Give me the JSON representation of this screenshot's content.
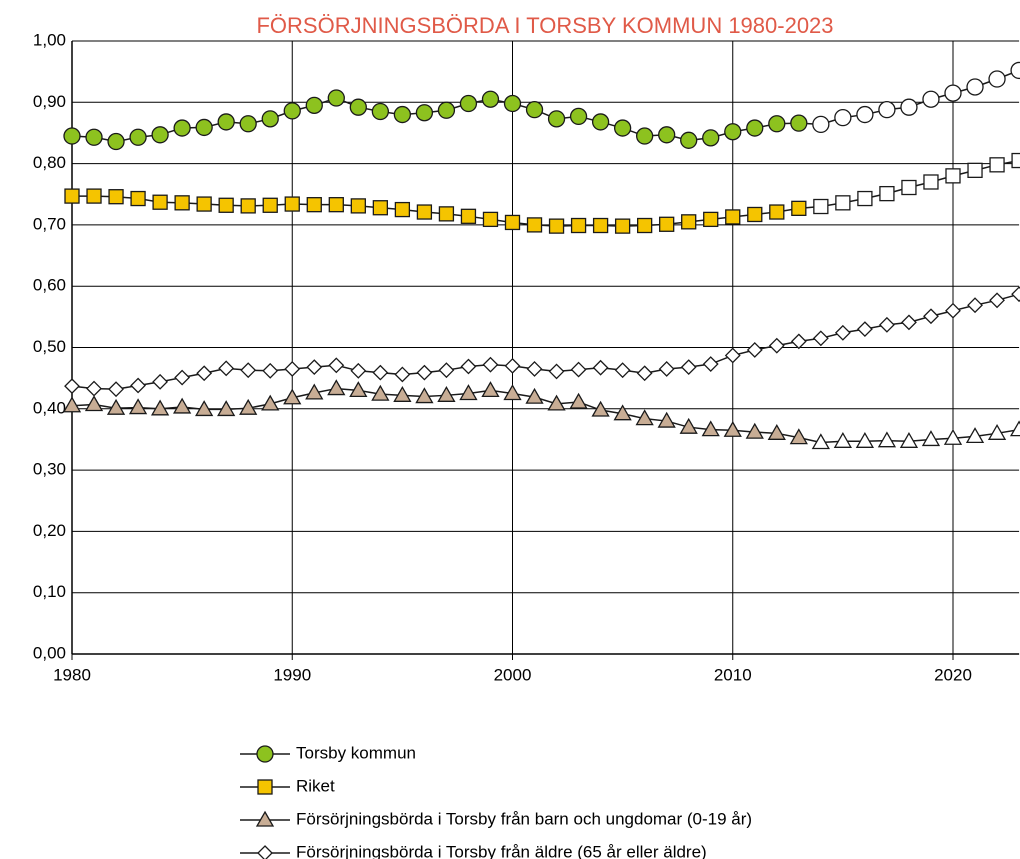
{
  "chart_data": {
    "type": "line",
    "title": "FÖRSÖRJNINGSBÖRDA I TORSBY KOMMUN 1980-2023",
    "x": [
      1980,
      1981,
      1982,
      1983,
      1984,
      1985,
      1986,
      1987,
      1988,
      1989,
      1990,
      1991,
      1992,
      1993,
      1994,
      1995,
      1996,
      1997,
      1998,
      1999,
      2000,
      2001,
      2002,
      2003,
      2004,
      2005,
      2006,
      2007,
      2008,
      2009,
      2010,
      2011,
      2012,
      2013,
      2014,
      2015,
      2016,
      2017,
      2018,
      2019,
      2020,
      2021,
      2022,
      2023
    ],
    "open_marker_from": 2014,
    "series": [
      {
        "name": "Torsby kommun",
        "color": "#8dc21f",
        "marker": "circle",
        "values": [
          0.845,
          0.843,
          0.836,
          0.843,
          0.847,
          0.858,
          0.859,
          0.868,
          0.865,
          0.873,
          0.886,
          0.895,
          0.907,
          0.892,
          0.885,
          0.88,
          0.883,
          0.887,
          0.898,
          0.905,
          0.898,
          0.888,
          0.873,
          0.877,
          0.868,
          0.858,
          0.845,
          0.847,
          0.838,
          0.842,
          0.852,
          0.858,
          0.865,
          0.866,
          0.864,
          0.875,
          0.88,
          0.888,
          0.892,
          0.905,
          0.915,
          0.925,
          0.938,
          0.952
        ]
      },
      {
        "name": "Riket",
        "color": "#f5c400",
        "marker": "square",
        "values": [
          0.747,
          0.747,
          0.746,
          0.743,
          0.737,
          0.736,
          0.734,
          0.732,
          0.731,
          0.732,
          0.734,
          0.733,
          0.733,
          0.731,
          0.728,
          0.725,
          0.721,
          0.718,
          0.714,
          0.709,
          0.704,
          0.7,
          0.698,
          0.699,
          0.699,
          0.698,
          0.699,
          0.701,
          0.705,
          0.709,
          0.713,
          0.717,
          0.721,
          0.727,
          0.73,
          0.736,
          0.743,
          0.751,
          0.761,
          0.77,
          0.78,
          0.789,
          0.798,
          0.805
        ]
      },
      {
        "name": "Försörjningsbörda i Torsby från barn och ungdomar (0-19 år)",
        "color": "#c8ad95",
        "marker": "triangle",
        "values": [
          0.405,
          0.407,
          0.401,
          0.402,
          0.4,
          0.403,
          0.399,
          0.399,
          0.401,
          0.408,
          0.418,
          0.426,
          0.433,
          0.43,
          0.424,
          0.422,
          0.42,
          0.422,
          0.425,
          0.43,
          0.425,
          0.419,
          0.408,
          0.411,
          0.398,
          0.392,
          0.384,
          0.38,
          0.37,
          0.366,
          0.365,
          0.362,
          0.36,
          0.353,
          0.345,
          0.347,
          0.347,
          0.348,
          0.347,
          0.35,
          0.352,
          0.355,
          0.36,
          0.366
        ]
      },
      {
        "name": "Försörjningsbörda i Torsby från äldre (65 år eller äldre)",
        "color": "#ffffff",
        "marker": "diamond",
        "values": [
          0.437,
          0.433,
          0.432,
          0.438,
          0.444,
          0.451,
          0.458,
          0.466,
          0.463,
          0.462,
          0.465,
          0.468,
          0.471,
          0.462,
          0.459,
          0.456,
          0.459,
          0.463,
          0.469,
          0.472,
          0.47,
          0.465,
          0.461,
          0.464,
          0.467,
          0.463,
          0.458,
          0.465,
          0.468,
          0.473,
          0.487,
          0.496,
          0.503,
          0.51,
          0.515,
          0.524,
          0.53,
          0.537,
          0.541,
          0.551,
          0.56,
          0.569,
          0.577,
          0.587
        ]
      }
    ],
    "xlim": [
      1980,
      2023
    ],
    "xticks": [
      1980,
      1990,
      2000,
      2010,
      2020
    ],
    "ylim": [
      0,
      1
    ],
    "yticks": [
      {
        "value": 0,
        "label": "0,00"
      },
      {
        "value": 0.1,
        "label": "0,10"
      },
      {
        "value": 0.2,
        "label": "0,20"
      },
      {
        "value": 0.3,
        "label": "0,30"
      },
      {
        "value": 0.4,
        "label": "0,40"
      },
      {
        "value": 0.5,
        "label": "0,50"
      },
      {
        "value": 0.6,
        "label": "0,60"
      },
      {
        "value": 0.7,
        "label": "0,70"
      },
      {
        "value": 0.8,
        "label": "0,80"
      },
      {
        "value": 0.9,
        "label": "0,90"
      },
      {
        "value": 1,
        "label": "1,00"
      }
    ],
    "grid": true,
    "legend": "bottom"
  }
}
